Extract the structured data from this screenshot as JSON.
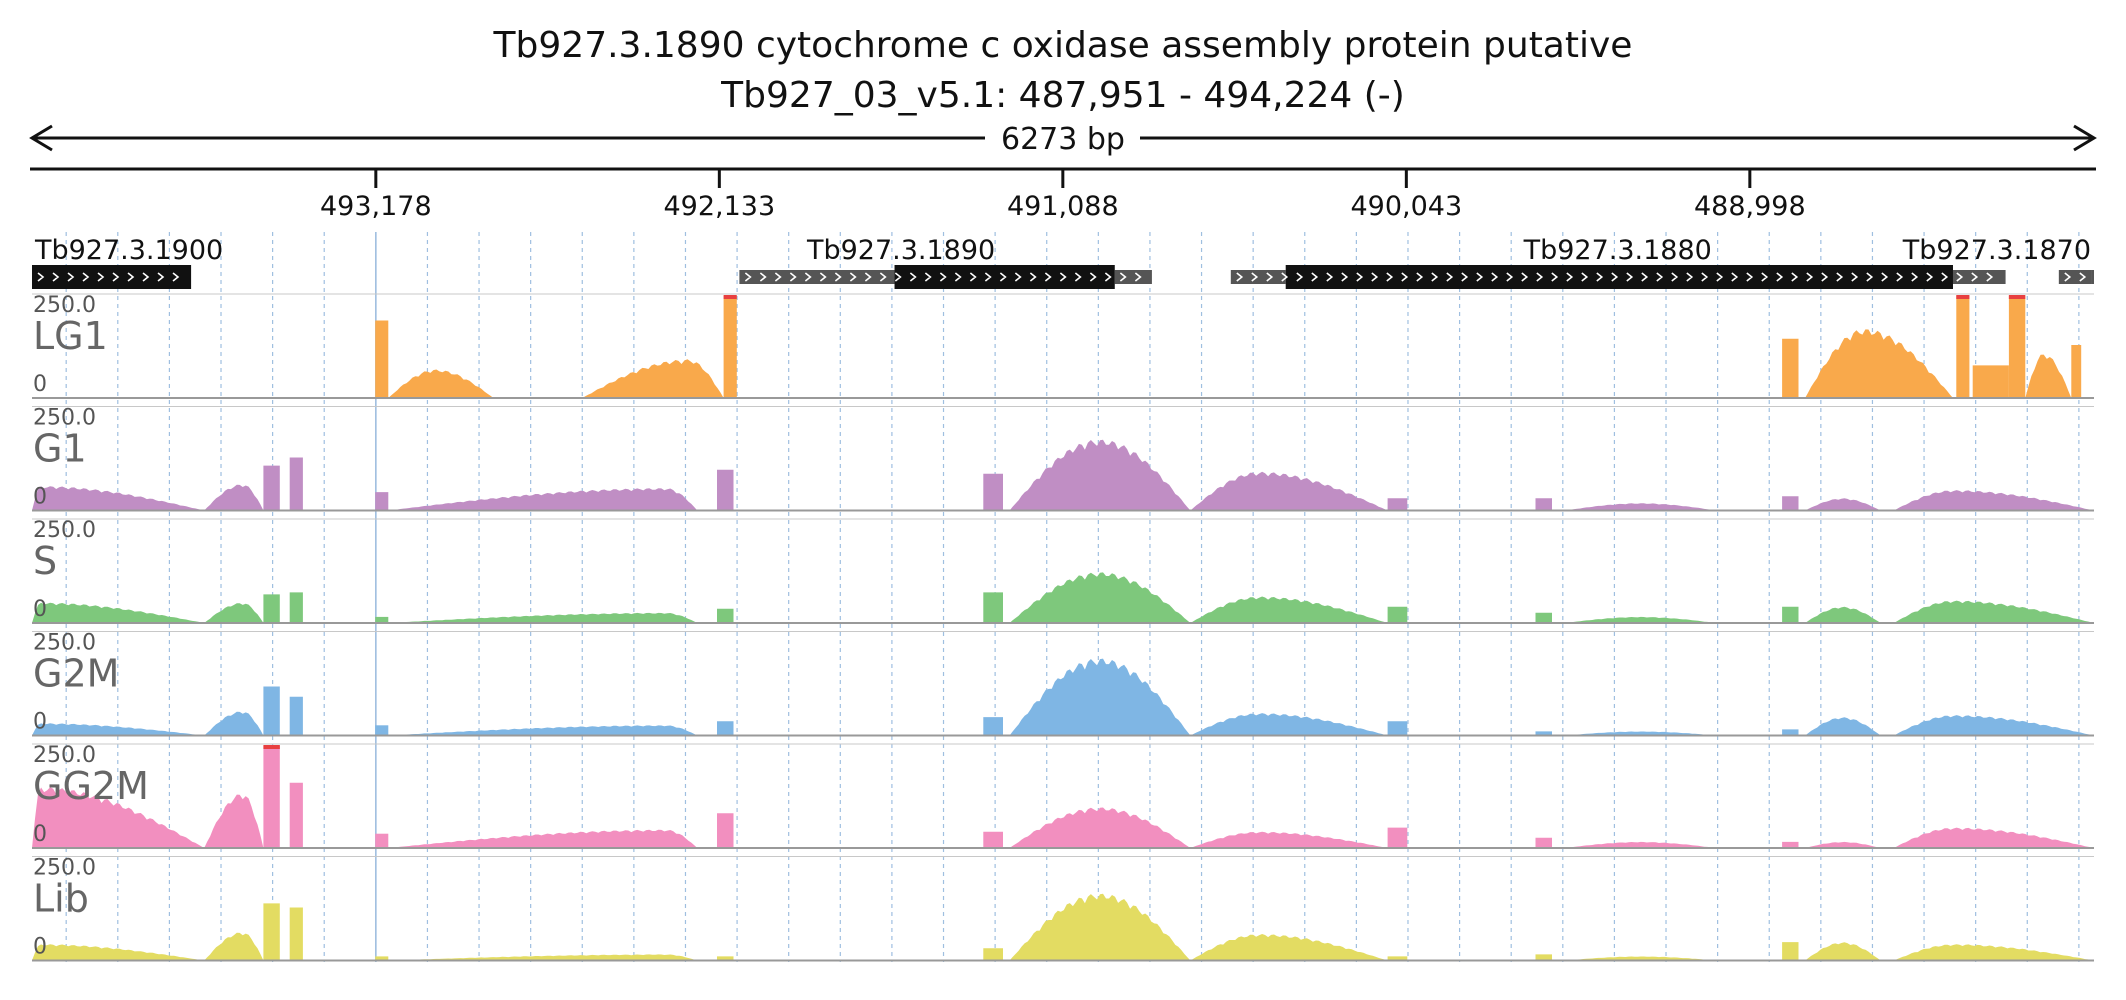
{
  "header": {
    "title_line1": "Tb927.3.1890  cytochrome c oxidase assembly protein  putative",
    "title_line2": "Tb927_03_v5.1: 487,951 - 494,224 (-)",
    "span_label": "6273 bp"
  },
  "colors": {
    "LG1": "#f9a94b",
    "G1": "#c08ec4",
    "S": "#7ec87c",
    "G2M": "#7fb6e4",
    "GG2M": "#f28fbf",
    "Lib": "#e3dc62",
    "clip": "#e84040",
    "gene_thick": "#111111",
    "gene_thin": "#555555",
    "grid": "#9fbfe0"
  },
  "chart_data": {
    "type": "area",
    "title": "Tb927.3.1890  cytochrome c oxidase assembly protein  putative",
    "subtitle": "Tb927_03_v5.1: 487,951 - 494,224 (-)",
    "xlabel": "",
    "ylabel": "",
    "x_axis": {
      "reversed": true,
      "range": [
        494224,
        487951
      ],
      "ticks": [
        493178,
        492133,
        491088,
        490043,
        488998
      ],
      "tick_labels": [
        "493,178",
        "492,133",
        "491,088",
        "490,043",
        "488,998"
      ],
      "minor_grid_step_bp": 157
    },
    "ylim": [
      0,
      250
    ],
    "y_tick_labels": [
      "250.0",
      "0"
    ],
    "genes": [
      {
        "name": "Tb927.3.1900",
        "start": 494224,
        "end": 493740,
        "utr5_start": 494224,
        "utr5_end": 494224,
        "utr3_start": 493740,
        "utr3_end": 493740,
        "label_anchor": "start",
        "label_pos": 494215
      },
      {
        "name": "Tb927.3.1890",
        "start": 492072,
        "end": 490817,
        "utr5_start": 492072,
        "utr5_end": 491600,
        "utr3_start": 490930,
        "utr3_end": 490817,
        "label_anchor": "middle",
        "label_pos": 491580
      },
      {
        "name": "Tb927.3.1880",
        "start": 490577,
        "end": 488220,
        "utr5_start": 490577,
        "utr5_end": 490410,
        "utr3_start": 488380,
        "utr3_end": 488220,
        "label_anchor": "middle",
        "label_pos": 489400
      },
      {
        "name": "Tb927.3.1870",
        "start": 488058,
        "end": 487951,
        "utr5_start": 488058,
        "utr5_end": 487960,
        "utr3_start": 487960,
        "utr3_end": 487951,
        "label_anchor": "end",
        "label_pos": 487960
      }
    ],
    "tracks": [
      {
        "name": "LG1",
        "color_key": "LG1",
        "segments": [
          {
            "start": 493180,
            "end": 493140,
            "v0": 190,
            "v1": 190
          },
          {
            "start": 493140,
            "end": 492820,
            "peak": 70,
            "peak_at": 0.45
          },
          {
            "start": 492550,
            "end": 492120,
            "peak": 95,
            "peak_at": 0.75
          },
          {
            "start": 492120,
            "end": 492080,
            "v0": 250,
            "v1": 250,
            "clip": true
          },
          {
            "start": 488900,
            "end": 488850,
            "v0": 145,
            "v1": 145
          },
          {
            "start": 488830,
            "end": 488380,
            "peak": 170,
            "peak_at": 0.4
          },
          {
            "start": 488370,
            "end": 488330,
            "v0": 250,
            "v1": 250,
            "clip": true
          },
          {
            "start": 488320,
            "end": 488210,
            "v0": 80,
            "v1": 80
          },
          {
            "start": 488210,
            "end": 488160,
            "v0": 250,
            "v1": 250,
            "clip": true
          },
          {
            "start": 488160,
            "end": 488020,
            "peak": 110,
            "peak_at": 0.4
          },
          {
            "start": 488020,
            "end": 487990,
            "v0": 130,
            "v1": 130
          }
        ]
      },
      {
        "name": "G1",
        "color_key": "G1",
        "segments": [
          {
            "start": 494224,
            "end": 493700,
            "peak": 60,
            "peak_at": 0.05
          },
          {
            "start": 493700,
            "end": 493520,
            "peak": 65,
            "peak_at": 0.65
          },
          {
            "start": 493520,
            "end": 493470,
            "v0": 110,
            "v1": 110
          },
          {
            "start": 493440,
            "end": 493400,
            "v0": 130,
            "v1": 130
          },
          {
            "start": 493180,
            "end": 493140,
            "v0": 45,
            "v1": 45
          },
          {
            "start": 493140,
            "end": 492200,
            "peak": 55,
            "peak_at": 0.9
          },
          {
            "start": 492140,
            "end": 492090,
            "v0": 100,
            "v1": 100
          },
          {
            "start": 491330,
            "end": 491270,
            "v0": 90,
            "v1": 90
          },
          {
            "start": 491250,
            "end": 490700,
            "peak": 175,
            "peak_at": 0.5
          },
          {
            "start": 490700,
            "end": 490100,
            "peak": 95,
            "peak_at": 0.35
          },
          {
            "start": 490100,
            "end": 490040,
            "v0": 30,
            "v1": 30
          },
          {
            "start": 489650,
            "end": 489600,
            "v0": 30,
            "v1": 30
          },
          {
            "start": 489560,
            "end": 489100,
            "peak": 18,
            "peak_at": 0.5
          },
          {
            "start": 488900,
            "end": 488850,
            "v0": 35,
            "v1": 35
          },
          {
            "start": 488830,
            "end": 488600,
            "peak": 30,
            "peak_at": 0.5
          },
          {
            "start": 488560,
            "end": 487951,
            "peak": 50,
            "peak_at": 0.3
          }
        ]
      },
      {
        "name": "S",
        "color_key": "S",
        "segments": [
          {
            "start": 494224,
            "end": 493700,
            "peak": 50,
            "peak_at": 0.05
          },
          {
            "start": 493700,
            "end": 493520,
            "peak": 50,
            "peak_at": 0.65
          },
          {
            "start": 493520,
            "end": 493470,
            "v0": 70,
            "v1": 70
          },
          {
            "start": 493440,
            "end": 493400,
            "v0": 75,
            "v1": 75
          },
          {
            "start": 493180,
            "end": 493140,
            "v0": 15,
            "v1": 15
          },
          {
            "start": 493140,
            "end": 492200,
            "peak": 25,
            "peak_at": 0.9
          },
          {
            "start": 492140,
            "end": 492090,
            "v0": 35,
            "v1": 35
          },
          {
            "start": 491330,
            "end": 491270,
            "v0": 75,
            "v1": 75
          },
          {
            "start": 491250,
            "end": 490700,
            "peak": 125,
            "peak_at": 0.5
          },
          {
            "start": 490700,
            "end": 490100,
            "peak": 65,
            "peak_at": 0.35
          },
          {
            "start": 490100,
            "end": 490040,
            "v0": 40,
            "v1": 40
          },
          {
            "start": 489650,
            "end": 489600,
            "v0": 25,
            "v1": 25
          },
          {
            "start": 489560,
            "end": 489100,
            "peak": 15,
            "peak_at": 0.5
          },
          {
            "start": 488900,
            "end": 488850,
            "v0": 40,
            "v1": 40
          },
          {
            "start": 488830,
            "end": 488600,
            "peak": 40,
            "peak_at": 0.5
          },
          {
            "start": 488560,
            "end": 487951,
            "peak": 55,
            "peak_at": 0.3
          }
        ]
      },
      {
        "name": "G2M",
        "color_key": "G2M",
        "segments": [
          {
            "start": 494224,
            "end": 493700,
            "peak": 30,
            "peak_at": 0.05
          },
          {
            "start": 493700,
            "end": 493520,
            "peak": 60,
            "peak_at": 0.65
          },
          {
            "start": 493520,
            "end": 493470,
            "v0": 120,
            "v1": 120
          },
          {
            "start": 493440,
            "end": 493400,
            "v0": 95,
            "v1": 95
          },
          {
            "start": 493180,
            "end": 493140,
            "v0": 25,
            "v1": 25
          },
          {
            "start": 493140,
            "end": 492200,
            "peak": 25,
            "peak_at": 0.9
          },
          {
            "start": 492140,
            "end": 492090,
            "v0": 35,
            "v1": 35
          },
          {
            "start": 491330,
            "end": 491270,
            "v0": 45,
            "v1": 45
          },
          {
            "start": 491250,
            "end": 490700,
            "peak": 190,
            "peak_at": 0.5
          },
          {
            "start": 490700,
            "end": 490100,
            "peak": 55,
            "peak_at": 0.35
          },
          {
            "start": 490100,
            "end": 490040,
            "v0": 35,
            "v1": 35
          },
          {
            "start": 489650,
            "end": 489600,
            "v0": 10,
            "v1": 10
          },
          {
            "start": 489560,
            "end": 489100,
            "peak": 10,
            "peak_at": 0.5
          },
          {
            "start": 488900,
            "end": 488850,
            "v0": 15,
            "v1": 15
          },
          {
            "start": 488830,
            "end": 488600,
            "peak": 45,
            "peak_at": 0.5
          },
          {
            "start": 488560,
            "end": 487951,
            "peak": 50,
            "peak_at": 0.3
          }
        ]
      },
      {
        "name": "GG2M",
        "color_key": "GG2M",
        "segments": [
          {
            "start": 494224,
            "end": 493700,
            "peak": 150,
            "peak_at": 0.05
          },
          {
            "start": 493700,
            "end": 493520,
            "peak": 135,
            "peak_at": 0.65
          },
          {
            "start": 493520,
            "end": 493470,
            "v0": 250,
            "v1": 250,
            "clip": true
          },
          {
            "start": 493440,
            "end": 493400,
            "v0": 160,
            "v1": 160
          },
          {
            "start": 493180,
            "end": 493140,
            "v0": 35,
            "v1": 35
          },
          {
            "start": 493140,
            "end": 492200,
            "peak": 45,
            "peak_at": 0.9
          },
          {
            "start": 492140,
            "end": 492090,
            "v0": 85,
            "v1": 85
          },
          {
            "start": 491330,
            "end": 491270,
            "v0": 40,
            "v1": 40
          },
          {
            "start": 491250,
            "end": 490700,
            "peak": 100,
            "peak_at": 0.5
          },
          {
            "start": 490700,
            "end": 490100,
            "peak": 40,
            "peak_at": 0.35
          },
          {
            "start": 490100,
            "end": 490040,
            "v0": 50,
            "v1": 50
          },
          {
            "start": 489650,
            "end": 489600,
            "v0": 25,
            "v1": 25
          },
          {
            "start": 489560,
            "end": 489100,
            "peak": 15,
            "peak_at": 0.5
          },
          {
            "start": 488900,
            "end": 488850,
            "v0": 15,
            "v1": 15
          },
          {
            "start": 488830,
            "end": 488600,
            "peak": 15,
            "peak_at": 0.5
          },
          {
            "start": 488560,
            "end": 487951,
            "peak": 50,
            "peak_at": 0.3
          }
        ]
      },
      {
        "name": "Lib",
        "color_key": "Lib",
        "segments": [
          {
            "start": 494224,
            "end": 493700,
            "peak": 40,
            "peak_at": 0.05
          },
          {
            "start": 493700,
            "end": 493520,
            "peak": 70,
            "peak_at": 0.65
          },
          {
            "start": 493520,
            "end": 493470,
            "v0": 140,
            "v1": 140
          },
          {
            "start": 493440,
            "end": 493400,
            "v0": 130,
            "v1": 130
          },
          {
            "start": 493180,
            "end": 493140,
            "v0": 10,
            "v1": 10
          },
          {
            "start": 493140,
            "end": 492200,
            "peak": 15,
            "peak_at": 0.9
          },
          {
            "start": 492140,
            "end": 492090,
            "v0": 10,
            "v1": 10
          },
          {
            "start": 491330,
            "end": 491270,
            "v0": 30,
            "v1": 30
          },
          {
            "start": 491250,
            "end": 490700,
            "peak": 165,
            "peak_at": 0.5
          },
          {
            "start": 490700,
            "end": 490100,
            "peak": 65,
            "peak_at": 0.35
          },
          {
            "start": 490100,
            "end": 490040,
            "v0": 10,
            "v1": 10
          },
          {
            "start": 489650,
            "end": 489600,
            "v0": 15,
            "v1": 15
          },
          {
            "start": 489560,
            "end": 489100,
            "peak": 10,
            "peak_at": 0.5
          },
          {
            "start": 488900,
            "end": 488850,
            "v0": 45,
            "v1": 45
          },
          {
            "start": 488830,
            "end": 488600,
            "peak": 45,
            "peak_at": 0.5
          },
          {
            "start": 488560,
            "end": 487951,
            "peak": 40,
            "peak_at": 0.3
          }
        ]
      }
    ]
  }
}
